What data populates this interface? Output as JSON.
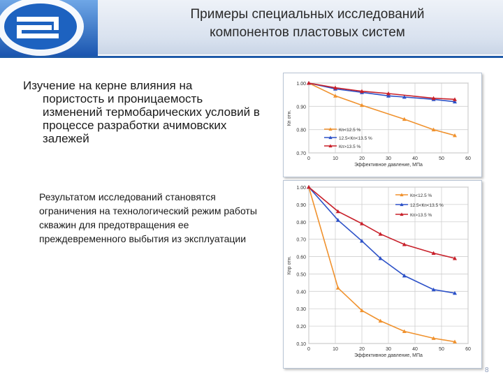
{
  "header": {
    "title_line1": "Примеры специальных исследований",
    "title_line2": "компонентов пластовых систем"
  },
  "main": {
    "heading_first": "Изучение на керне влияния на",
    "heading_rest": "пористость и проницаемость изменений термобарических условий в процессе разработки ачимовских залежей",
    "result_text": "Результатом исследований становятся ограничения на технологический режим работы скважин для предотвращения ее преждевременного выбытия из эксплуатации"
  },
  "page_number": "8",
  "colors": {
    "header_line": "#1e5aa8",
    "series_orange": "#f0922e",
    "series_blue": "#2d52c8",
    "series_red": "#c8202a"
  },
  "chart_data": [
    {
      "type": "line",
      "xlabel": "Эффективное давление, МПа",
      "ylabel": "Кп отн.",
      "xlim": [
        0,
        60
      ],
      "ylim": [
        0.7,
        1.0
      ],
      "xticks": [
        "0",
        "10",
        "20",
        "30",
        "40",
        "50",
        "60"
      ],
      "yticks": [
        "0.70",
        "0.80",
        "0.90",
        "1.00"
      ],
      "grid": true,
      "legend_position": "bottom-left",
      "series": [
        {
          "name": "Кп<12.5 %",
          "color": "#f0922e",
          "x": [
            0,
            10,
            20,
            36,
            47,
            55
          ],
          "y": [
            1.0,
            0.945,
            0.905,
            0.845,
            0.8,
            0.775
          ]
        },
        {
          "name": "12.5<Кп<13.5 %",
          "color": "#2d52c8",
          "x": [
            0,
            10,
            20,
            30,
            36,
            47,
            55
          ],
          "y": [
            1.0,
            0.975,
            0.96,
            0.945,
            0.94,
            0.93,
            0.92
          ]
        },
        {
          "name": "Кп>13.5 %",
          "color": "#c8202a",
          "x": [
            0,
            10,
            20,
            30,
            47,
            55
          ],
          "y": [
            1.0,
            0.98,
            0.965,
            0.955,
            0.935,
            0.93
          ]
        }
      ]
    },
    {
      "type": "line",
      "xlabel": "Эффективное давление, МПа",
      "ylabel": "Кпр отн.",
      "xlim": [
        0,
        60
      ],
      "ylim": [
        0.1,
        1.0
      ],
      "xticks": [
        "0",
        "10",
        "20",
        "30",
        "40",
        "50",
        "60"
      ],
      "yticks": [
        "0.10",
        "0.20",
        "0.30",
        "0.40",
        "0.50",
        "0.60",
        "0.70",
        "0.80",
        "0.90",
        "1.00"
      ],
      "grid": true,
      "legend_position": "top-right",
      "series": [
        {
          "name": "Кп<12.5 %",
          "color": "#f0922e",
          "x": [
            0,
            11,
            20,
            27,
            36,
            47,
            55
          ],
          "y": [
            1.0,
            0.42,
            0.29,
            0.23,
            0.17,
            0.13,
            0.11
          ]
        },
        {
          "name": "12.5<Кп<13.5 %",
          "color": "#2d52c8",
          "x": [
            0,
            11,
            20,
            27,
            36,
            47,
            55
          ],
          "y": [
            1.0,
            0.81,
            0.69,
            0.59,
            0.49,
            0.41,
            0.39
          ]
        },
        {
          "name": "Кп>13.5 %",
          "color": "#c8202a",
          "x": [
            0,
            11,
            20,
            27,
            36,
            47,
            55
          ],
          "y": [
            1.0,
            0.86,
            0.79,
            0.73,
            0.67,
            0.62,
            0.59
          ]
        }
      ]
    }
  ]
}
